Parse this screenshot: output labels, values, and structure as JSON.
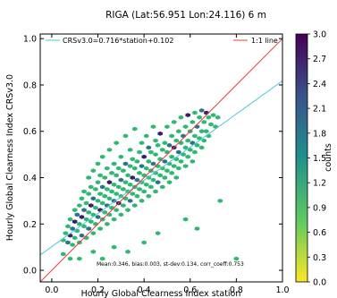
{
  "chart_data": {
    "type": "scatter",
    "title": "RIGA (Lat:56.951 Lon:24.116) 6 m",
    "xlabel": "Hourly Global Clearness Index station",
    "ylabel": "Hourly Global Clearness Index CRSv3.0",
    "xlim": [
      -0.05,
      1.0
    ],
    "ylim": [
      -0.05,
      1.02
    ],
    "xticks": [
      0.0,
      0.2,
      0.4,
      0.6,
      0.8,
      1.0
    ],
    "xtick_labels": [
      "0.0",
      "0.2",
      "0.4",
      "0.6",
      "0.8",
      "1.0"
    ],
    "yticks": [
      0.0,
      0.2,
      0.4,
      0.6,
      0.8,
      1.0
    ],
    "ytick_labels": [
      "0.0",
      "0.2",
      "0.4",
      "0.6",
      "0.8",
      "1.0"
    ],
    "grid": false,
    "legend_position": "top",
    "series": [
      {
        "name": "CRSv3.0=0.716*station+0.102",
        "kind": "regression-line",
        "slope": 0.716,
        "intercept": 0.102,
        "color": "#4dc8d8"
      },
      {
        "name": "1:1 line",
        "kind": "identity-line",
        "slope": 1.0,
        "intercept": 0.0,
        "color": "#ee3b3b"
      }
    ],
    "annotation": "Mean:0.346, bias:0.003, st-dev:0.134, corr_coeff:0.753",
    "colorbar": {
      "label": "counts",
      "min": 0.0,
      "max": 3.0,
      "ticks": [
        "0.0",
        "0.3",
        "0.6",
        "0.9",
        "1.2",
        "1.5",
        "1.8",
        "2.1",
        "2.4",
        "2.7",
        "3.0"
      ],
      "colors": [
        "#fde725",
        "#5ec962",
        "#21918c",
        "#3b528b",
        "#440154"
      ]
    },
    "points": [
      [
        0.05,
        0.13,
        1
      ],
      [
        0.06,
        0.16,
        1
      ],
      [
        0.07,
        0.12,
        2
      ],
      [
        0.07,
        0.19,
        1
      ],
      [
        0.08,
        0.15,
        3
      ],
      [
        0.08,
        0.22,
        1
      ],
      [
        0.09,
        0.11,
        1
      ],
      [
        0.09,
        0.18,
        2
      ],
      [
        0.1,
        0.14,
        1
      ],
      [
        0.1,
        0.21,
        3
      ],
      [
        0.1,
        0.26,
        1
      ],
      [
        0.11,
        0.17,
        1
      ],
      [
        0.11,
        0.24,
        2
      ],
      [
        0.12,
        0.12,
        1
      ],
      [
        0.12,
        0.2,
        1
      ],
      [
        0.12,
        0.28,
        1
      ],
      [
        0.13,
        0.15,
        2
      ],
      [
        0.13,
        0.23,
        3
      ],
      [
        0.13,
        0.31,
        1
      ],
      [
        0.14,
        0.19,
        1
      ],
      [
        0.14,
        0.26,
        2
      ],
      [
        0.14,
        0.34,
        1
      ],
      [
        0.15,
        0.14,
        1
      ],
      [
        0.15,
        0.22,
        1
      ],
      [
        0.15,
        0.29,
        1
      ],
      [
        0.16,
        0.18,
        2
      ],
      [
        0.16,
        0.25,
        1
      ],
      [
        0.16,
        0.33,
        1
      ],
      [
        0.16,
        0.4,
        1
      ],
      [
        0.17,
        0.21,
        1
      ],
      [
        0.17,
        0.28,
        3
      ],
      [
        0.17,
        0.36,
        1
      ],
      [
        0.18,
        0.16,
        1
      ],
      [
        0.18,
        0.24,
        1
      ],
      [
        0.18,
        0.31,
        2
      ],
      [
        0.18,
        0.43,
        1
      ],
      [
        0.19,
        0.2,
        1
      ],
      [
        0.19,
        0.27,
        1
      ],
      [
        0.19,
        0.35,
        1
      ],
      [
        0.2,
        0.23,
        2
      ],
      [
        0.2,
        0.3,
        1
      ],
      [
        0.2,
        0.38,
        1
      ],
      [
        0.2,
        0.46,
        1
      ],
      [
        0.21,
        0.18,
        1
      ],
      [
        0.21,
        0.26,
        3
      ],
      [
        0.21,
        0.33,
        1
      ],
      [
        0.21,
        0.41,
        1
      ],
      [
        0.22,
        0.22,
        1
      ],
      [
        0.22,
        0.29,
        1
      ],
      [
        0.22,
        0.36,
        2
      ],
      [
        0.22,
        0.49,
        1
      ],
      [
        0.23,
        0.25,
        1
      ],
      [
        0.23,
        0.32,
        1
      ],
      [
        0.23,
        0.4,
        1
      ],
      [
        0.24,
        0.2,
        1
      ],
      [
        0.24,
        0.28,
        2
      ],
      [
        0.24,
        0.35,
        1
      ],
      [
        0.24,
        0.44,
        1
      ],
      [
        0.25,
        0.24,
        1
      ],
      [
        0.25,
        0.31,
        1
      ],
      [
        0.25,
        0.38,
        3
      ],
      [
        0.25,
        0.52,
        1
      ],
      [
        0.26,
        0.27,
        1
      ],
      [
        0.26,
        0.34,
        1
      ],
      [
        0.26,
        0.42,
        1
      ],
      [
        0.27,
        0.22,
        1
      ],
      [
        0.27,
        0.3,
        2
      ],
      [
        0.27,
        0.37,
        1
      ],
      [
        0.27,
        0.46,
        1
      ],
      [
        0.28,
        0.26,
        1
      ],
      [
        0.28,
        0.33,
        1
      ],
      [
        0.28,
        0.41,
        1
      ],
      [
        0.28,
        0.55,
        1
      ],
      [
        0.29,
        0.29,
        3
      ],
      [
        0.29,
        0.36,
        1
      ],
      [
        0.29,
        0.44,
        1
      ],
      [
        0.3,
        0.24,
        1
      ],
      [
        0.3,
        0.32,
        1
      ],
      [
        0.3,
        0.39,
        2
      ],
      [
        0.3,
        0.49,
        1
      ],
      [
        0.31,
        0.28,
        1
      ],
      [
        0.31,
        0.35,
        1
      ],
      [
        0.31,
        0.43,
        1
      ],
      [
        0.32,
        0.31,
        1
      ],
      [
        0.32,
        0.38,
        1
      ],
      [
        0.32,
        0.46,
        2
      ],
      [
        0.32,
        0.58,
        1
      ],
      [
        0.33,
        0.26,
        1
      ],
      [
        0.33,
        0.34,
        1
      ],
      [
        0.33,
        0.41,
        1
      ],
      [
        0.34,
        0.3,
        2
      ],
      [
        0.34,
        0.37,
        1
      ],
      [
        0.34,
        0.45,
        1
      ],
      [
        0.34,
        0.52,
        1
      ],
      [
        0.35,
        0.33,
        1
      ],
      [
        0.35,
        0.4,
        3
      ],
      [
        0.35,
        0.48,
        1
      ],
      [
        0.36,
        0.28,
        1
      ],
      [
        0.36,
        0.36,
        1
      ],
      [
        0.36,
        0.44,
        1
      ],
      [
        0.36,
        0.61,
        1
      ],
      [
        0.37,
        0.32,
        1
      ],
      [
        0.37,
        0.39,
        2
      ],
      [
        0.37,
        0.47,
        1
      ],
      [
        0.38,
        0.35,
        1
      ],
      [
        0.38,
        0.42,
        1
      ],
      [
        0.38,
        0.51,
        1
      ],
      [
        0.39,
        0.3,
        1
      ],
      [
        0.39,
        0.38,
        1
      ],
      [
        0.39,
        0.45,
        2
      ],
      [
        0.39,
        0.55,
        1
      ],
      [
        0.4,
        0.34,
        1
      ],
      [
        0.4,
        0.41,
        1
      ],
      [
        0.4,
        0.49,
        3
      ],
      [
        0.41,
        0.37,
        1
      ],
      [
        0.41,
        0.44,
        1
      ],
      [
        0.41,
        0.58,
        1
      ],
      [
        0.42,
        0.32,
        1
      ],
      [
        0.42,
        0.4,
        1
      ],
      [
        0.42,
        0.47,
        1
      ],
      [
        0.42,
        0.53,
        2
      ],
      [
        0.43,
        0.36,
        1
      ],
      [
        0.43,
        0.43,
        1
      ],
      [
        0.43,
        0.51,
        1
      ],
      [
        0.44,
        0.39,
        1
      ],
      [
        0.44,
        0.46,
        2
      ],
      [
        0.44,
        0.62,
        1
      ],
      [
        0.45,
        0.34,
        1
      ],
      [
        0.45,
        0.42,
        1
      ],
      [
        0.45,
        0.5,
        1
      ],
      [
        0.45,
        0.56,
        1
      ],
      [
        0.46,
        0.38,
        2
      ],
      [
        0.46,
        0.45,
        1
      ],
      [
        0.46,
        0.54,
        1
      ],
      [
        0.47,
        0.41,
        1
      ],
      [
        0.47,
        0.48,
        1
      ],
      [
        0.47,
        0.59,
        3
      ],
      [
        0.48,
        0.36,
        1
      ],
      [
        0.48,
        0.44,
        1
      ],
      [
        0.48,
        0.52,
        1
      ],
      [
        0.49,
        0.4,
        1
      ],
      [
        0.49,
        0.47,
        2
      ],
      [
        0.49,
        0.55,
        1
      ],
      [
        0.5,
        0.43,
        1
      ],
      [
        0.5,
        0.51,
        1
      ],
      [
        0.5,
        0.62,
        1
      ],
      [
        0.51,
        0.38,
        1
      ],
      [
        0.51,
        0.46,
        1
      ],
      [
        0.51,
        0.54,
        2
      ],
      [
        0.52,
        0.42,
        1
      ],
      [
        0.52,
        0.49,
        1
      ],
      [
        0.52,
        0.58,
        1
      ],
      [
        0.53,
        0.45,
        1
      ],
      [
        0.53,
        0.53,
        3
      ],
      [
        0.53,
        0.64,
        1
      ],
      [
        0.54,
        0.4,
        1
      ],
      [
        0.54,
        0.48,
        1
      ],
      [
        0.54,
        0.56,
        1
      ],
      [
        0.55,
        0.44,
        1
      ],
      [
        0.55,
        0.51,
        2
      ],
      [
        0.55,
        0.6,
        1
      ],
      [
        0.56,
        0.47,
        1
      ],
      [
        0.56,
        0.55,
        1
      ],
      [
        0.56,
        0.66,
        1
      ],
      [
        0.57,
        0.5,
        1
      ],
      [
        0.57,
        0.58,
        2
      ],
      [
        0.58,
        0.45,
        1
      ],
      [
        0.58,
        0.53,
        1
      ],
      [
        0.58,
        0.62,
        1
      ],
      [
        0.59,
        0.49,
        1
      ],
      [
        0.59,
        0.56,
        1
      ],
      [
        0.59,
        0.67,
        3
      ],
      [
        0.6,
        0.52,
        1
      ],
      [
        0.6,
        0.6,
        1
      ],
      [
        0.61,
        0.47,
        1
      ],
      [
        0.61,
        0.55,
        2
      ],
      [
        0.61,
        0.64,
        1
      ],
      [
        0.62,
        0.51,
        1
      ],
      [
        0.62,
        0.58,
        1
      ],
      [
        0.62,
        0.68,
        1
      ],
      [
        0.63,
        0.54,
        1
      ],
      [
        0.63,
        0.62,
        2
      ],
      [
        0.64,
        0.57,
        1
      ],
      [
        0.64,
        0.66,
        1
      ],
      [
        0.65,
        0.53,
        1
      ],
      [
        0.65,
        0.6,
        1
      ],
      [
        0.65,
        0.69,
        2
      ],
      [
        0.66,
        0.56,
        1
      ],
      [
        0.66,
        0.64,
        1
      ],
      [
        0.67,
        0.6,
        1
      ],
      [
        0.67,
        0.68,
        3
      ],
      [
        0.68,
        0.58,
        1
      ],
      [
        0.68,
        0.66,
        1
      ],
      [
        0.69,
        0.63,
        1
      ],
      [
        0.7,
        0.67,
        1
      ],
      [
        0.71,
        0.62,
        1
      ],
      [
        0.72,
        0.66,
        1
      ],
      [
        0.73,
        0.3,
        1
      ],
      [
        0.8,
        0.05,
        1
      ],
      [
        0.63,
        0.18,
        1
      ],
      [
        0.58,
        0.22,
        1
      ],
      [
        0.46,
        0.16,
        1
      ],
      [
        0.4,
        0.12,
        1
      ],
      [
        0.33,
        0.08,
        1
      ],
      [
        0.27,
        0.1,
        1
      ],
      [
        0.22,
        0.05,
        1
      ],
      [
        0.18,
        0.08,
        1
      ],
      [
        0.12,
        0.05,
        1
      ],
      [
        0.08,
        0.05,
        1
      ],
      [
        0.05,
        0.07,
        1
      ]
    ]
  }
}
